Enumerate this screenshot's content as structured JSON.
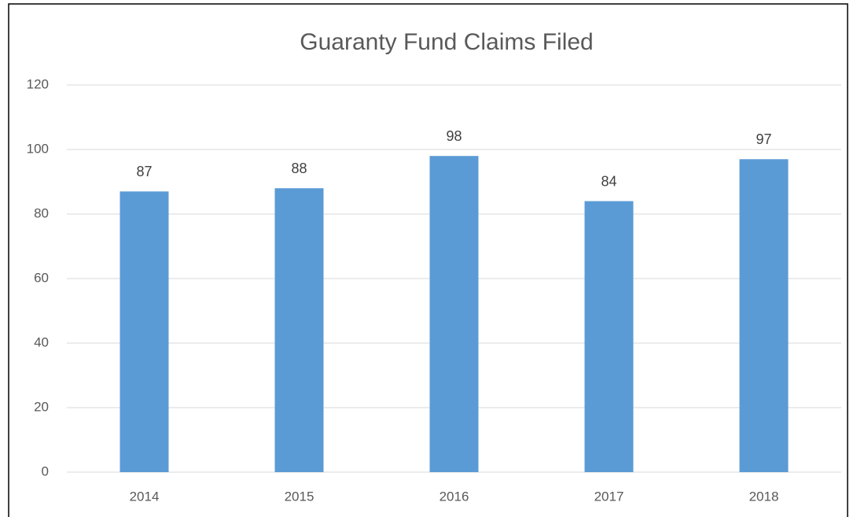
{
  "chart_data": {
    "type": "bar",
    "title": "Guaranty Fund Claims Filed",
    "categories": [
      "2014",
      "2015",
      "2016",
      "2017",
      "2018"
    ],
    "values": [
      87,
      88,
      98,
      84,
      97
    ],
    "color": "#5b9bd5",
    "ylim": [
      0,
      120
    ],
    "yticks": [
      0,
      20,
      40,
      60,
      80,
      100,
      120
    ],
    "grid": true
  }
}
